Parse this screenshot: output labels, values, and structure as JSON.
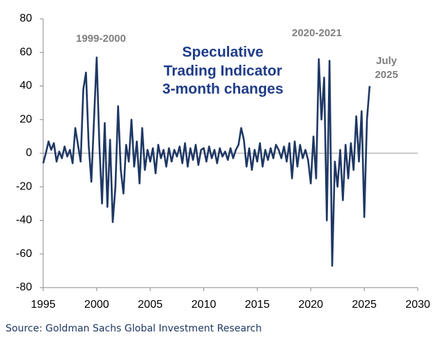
{
  "chart_data": {
    "type": "line",
    "title_lines": [
      "Speculative",
      "Trading Indicator",
      "3-month changes"
    ],
    "annotations": [
      "1999-2000",
      "2020-2021",
      "July",
      "2025"
    ],
    "source": "Source: Goldman Sachs Global Investment Research",
    "x": [
      1995,
      1995.25,
      1995.5,
      1995.75,
      1996,
      1996.25,
      1996.5,
      1996.75,
      1997,
      1997.25,
      1997.5,
      1997.75,
      1998,
      1998.25,
      1998.5,
      1998.75,
      1999,
      1999.25,
      1999.5,
      1999.75,
      2000,
      2000.25,
      2000.5,
      2000.75,
      2001,
      2001.25,
      2001.5,
      2001.75,
      2002,
      2002.25,
      2002.5,
      2002.75,
      2003,
      2003.25,
      2003.5,
      2003.75,
      2004,
      2004.25,
      2004.5,
      2004.75,
      2005,
      2005.25,
      2005.5,
      2005.75,
      2006,
      2006.25,
      2006.5,
      2006.75,
      2007,
      2007.25,
      2007.5,
      2007.75,
      2008,
      2008.25,
      2008.5,
      2008.75,
      2009,
      2009.25,
      2009.5,
      2009.75,
      2010,
      2010.25,
      2010.5,
      2010.75,
      2011,
      2011.25,
      2011.5,
      2011.75,
      2012,
      2012.25,
      2012.5,
      2012.75,
      2013,
      2013.25,
      2013.5,
      2013.75,
      2014,
      2014.25,
      2014.5,
      2014.75,
      2015,
      2015.25,
      2015.5,
      2015.75,
      2016,
      2016.25,
      2016.5,
      2016.75,
      2017,
      2017.25,
      2017.5,
      2017.75,
      2018,
      2018.25,
      2018.5,
      2018.75,
      2019,
      2019.25,
      2019.5,
      2019.75,
      2020,
      2020.25,
      2020.5,
      2020.75,
      2021,
      2021.25,
      2021.5,
      2021.75,
      2022,
      2022.25,
      2022.5,
      2022.75,
      2023,
      2023.25,
      2023.5,
      2023.75,
      2024,
      2024.25,
      2024.5,
      2024.75,
      2025,
      2025.25,
      2025.5
    ],
    "series": [
      {
        "name": "Speculative Trading Indicator",
        "color": "#1f3864",
        "values": [
          -6,
          0,
          7,
          2,
          6,
          -5,
          1,
          -3,
          4,
          -2,
          2,
          -6,
          15,
          5,
          -5,
          38,
          48,
          5,
          -17,
          20,
          57,
          5,
          -30,
          18,
          -32,
          8,
          -41,
          -20,
          28,
          -10,
          -24,
          5,
          -5,
          20,
          -8,
          7,
          -18,
          15,
          -10,
          2,
          -5,
          3,
          -12,
          5,
          -3,
          2,
          -8,
          3,
          -5,
          2,
          -2,
          4,
          -6,
          6,
          -8,
          3,
          -4,
          5,
          -7,
          2,
          3,
          -5,
          4,
          -3,
          2,
          -6,
          3,
          -2,
          1,
          -4,
          3,
          -3,
          2,
          5,
          15,
          8,
          -8,
          3,
          -10,
          2,
          -5,
          6,
          -8,
          2,
          -4,
          3,
          -3,
          5,
          2,
          -3,
          4,
          -5,
          6,
          -15,
          7,
          -8,
          5,
          -3,
          2,
          -4,
          -18,
          10,
          -15,
          56,
          20,
          45,
          -40,
          55,
          -67,
          -5,
          -20,
          2,
          -28,
          5,
          -15,
          6,
          -10,
          22,
          -5,
          25,
          -38,
          20,
          40
        ]
      }
    ],
    "xlim": [
      1995,
      2030
    ],
    "xticks": [
      1995,
      2000,
      2005,
      2010,
      2015,
      2020,
      2025,
      2030
    ],
    "ylim": [
      -80,
      80
    ],
    "yticks": [
      -80,
      -60,
      -40,
      -20,
      0,
      20,
      40,
      60,
      80
    ]
  }
}
